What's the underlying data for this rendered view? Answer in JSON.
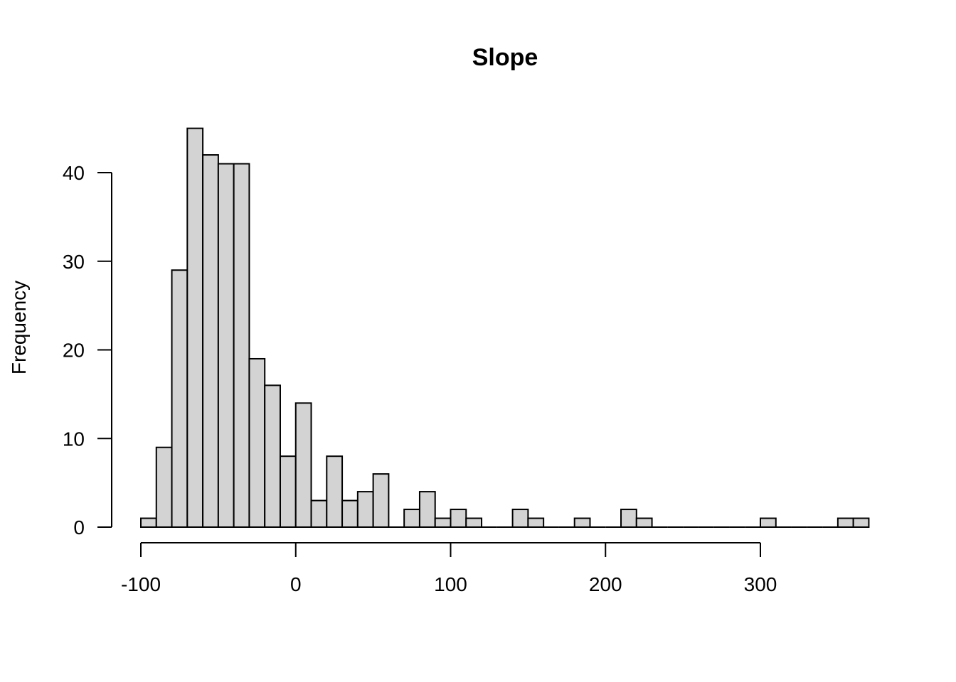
{
  "chart_data": {
    "type": "bar",
    "title": "Slope",
    "xlabel": "",
    "ylabel": "Frequency",
    "bin_width": 10,
    "bin_start": -100,
    "bins": [
      {
        "start": -100,
        "end": -90,
        "count": 1
      },
      {
        "start": -90,
        "end": -80,
        "count": 9
      },
      {
        "start": -80,
        "end": -70,
        "count": 29
      },
      {
        "start": -70,
        "end": -60,
        "count": 45
      },
      {
        "start": -60,
        "end": -50,
        "count": 42
      },
      {
        "start": -50,
        "end": -40,
        "count": 41
      },
      {
        "start": -40,
        "end": -30,
        "count": 41
      },
      {
        "start": -30,
        "end": -20,
        "count": 19
      },
      {
        "start": -20,
        "end": -10,
        "count": 16
      },
      {
        "start": -10,
        "end": 0,
        "count": 8
      },
      {
        "start": 0,
        "end": 10,
        "count": 14
      },
      {
        "start": 10,
        "end": 20,
        "count": 3
      },
      {
        "start": 20,
        "end": 30,
        "count": 8
      },
      {
        "start": 30,
        "end": 40,
        "count": 3
      },
      {
        "start": 40,
        "end": 50,
        "count": 4
      },
      {
        "start": 50,
        "end": 60,
        "count": 6
      },
      {
        "start": 60,
        "end": 70,
        "count": 0
      },
      {
        "start": 70,
        "end": 80,
        "count": 2
      },
      {
        "start": 80,
        "end": 90,
        "count": 4
      },
      {
        "start": 90,
        "end": 100,
        "count": 1
      },
      {
        "start": 100,
        "end": 110,
        "count": 2
      },
      {
        "start": 110,
        "end": 120,
        "count": 1
      },
      {
        "start": 120,
        "end": 130,
        "count": 0
      },
      {
        "start": 130,
        "end": 140,
        "count": 0
      },
      {
        "start": 140,
        "end": 150,
        "count": 2
      },
      {
        "start": 150,
        "end": 160,
        "count": 1
      },
      {
        "start": 160,
        "end": 170,
        "count": 0
      },
      {
        "start": 170,
        "end": 180,
        "count": 0
      },
      {
        "start": 180,
        "end": 190,
        "count": 1
      },
      {
        "start": 190,
        "end": 200,
        "count": 0
      },
      {
        "start": 200,
        "end": 210,
        "count": 0
      },
      {
        "start": 210,
        "end": 220,
        "count": 2
      },
      {
        "start": 220,
        "end": 230,
        "count": 1
      },
      {
        "start": 230,
        "end": 240,
        "count": 0
      },
      {
        "start": 240,
        "end": 250,
        "count": 0
      },
      {
        "start": 250,
        "end": 260,
        "count": 0
      },
      {
        "start": 260,
        "end": 270,
        "count": 0
      },
      {
        "start": 270,
        "end": 280,
        "count": 0
      },
      {
        "start": 280,
        "end": 290,
        "count": 0
      },
      {
        "start": 290,
        "end": 300,
        "count": 0
      },
      {
        "start": 300,
        "end": 310,
        "count": 1
      },
      {
        "start": 310,
        "end": 320,
        "count": 0
      },
      {
        "start": 320,
        "end": 330,
        "count": 0
      },
      {
        "start": 330,
        "end": 340,
        "count": 0
      },
      {
        "start": 340,
        "end": 350,
        "count": 0
      },
      {
        "start": 350,
        "end": 360,
        "count": 1
      },
      {
        "start": 360,
        "end": 370,
        "count": 1
      }
    ],
    "xticks": [
      -100,
      0,
      100,
      200,
      300
    ],
    "xtick_labels": [
      "-100",
      "0",
      "100",
      "200",
      "300"
    ],
    "yticks": [
      0,
      10,
      20,
      30,
      40
    ],
    "ytick_labels": [
      "0",
      "10",
      "20",
      "30",
      "40"
    ],
    "xlim": [
      -100,
      370
    ],
    "ylim": [
      0,
      45
    ],
    "grid": false,
    "legend": "none",
    "colors": {
      "bar_fill": "#d3d3d3",
      "bar_stroke": "#000000",
      "axis": "#000000"
    }
  }
}
